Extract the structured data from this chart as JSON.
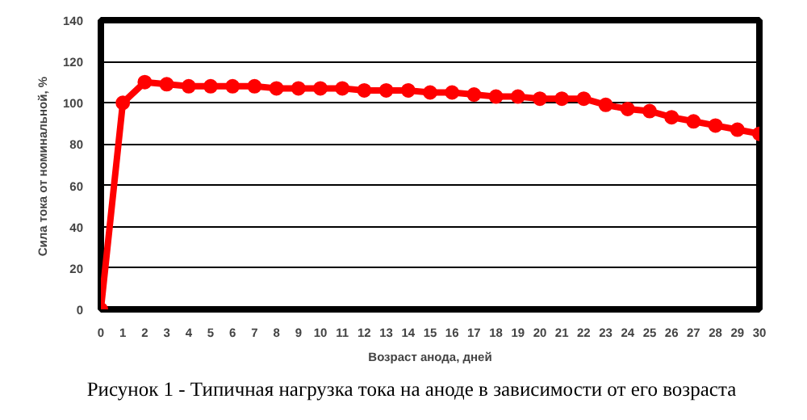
{
  "chart_data": {
    "type": "line",
    "xlabel": "Возраст анода, дней",
    "ylabel": "Сила тока  от номинальной, %",
    "x": [
      0,
      1,
      2,
      3,
      4,
      5,
      6,
      7,
      8,
      9,
      10,
      11,
      12,
      13,
      14,
      15,
      16,
      17,
      18,
      19,
      20,
      21,
      22,
      23,
      24,
      25,
      26,
      27,
      28,
      29,
      30
    ],
    "series": [
      {
        "color": "#ff0000",
        "values": [
          0,
          100,
          110,
          109,
          108,
          108,
          108,
          108,
          107,
          107,
          107,
          107,
          106,
          106,
          106,
          105,
          105,
          104,
          103,
          103,
          102,
          102,
          102,
          99,
          97,
          96,
          93,
          91,
          89,
          87,
          85
        ]
      }
    ],
    "xlim": [
      0,
      30
    ],
    "xticks": [
      0,
      1,
      2,
      3,
      4,
      5,
      6,
      7,
      8,
      9,
      10,
      11,
      12,
      13,
      14,
      15,
      16,
      17,
      18,
      19,
      20,
      21,
      22,
      23,
      24,
      25,
      26,
      27,
      28,
      29,
      30
    ],
    "ylim": [
      0,
      140
    ],
    "yticks": [
      0,
      20,
      40,
      60,
      80,
      100,
      120,
      140
    ],
    "grid": "y",
    "marker": "circle",
    "line_style": "solid",
    "annotations": [
      "Рисунок 1 - Типичная нагрузка тока на аноде в зависимости от его возраста"
    ]
  }
}
